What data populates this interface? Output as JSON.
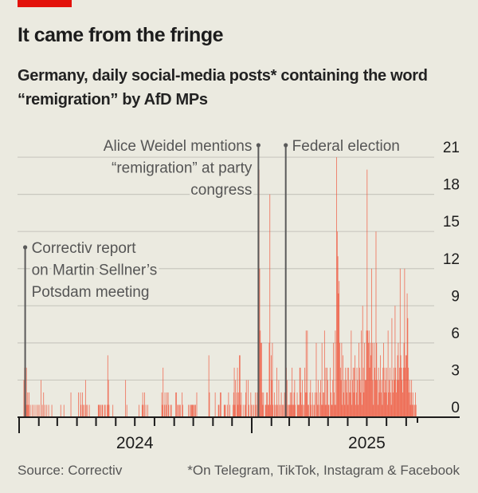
{
  "header": {
    "title": "It came from the fringe",
    "subtitle": "Germany, daily social-media posts* containing the word “remigration” by AfD MPs"
  },
  "footer": {
    "source": "Source: Correctiv",
    "note": "*On Telegram, TikTok, Instagram & Facebook"
  },
  "colors": {
    "brand": "#e3120b",
    "bars": "#f04e33",
    "annotation": "#555555",
    "background": "#ebeae0"
  },
  "chart_data": {
    "type": "bar",
    "title": "It came from the fringe",
    "ylim": [
      0,
      21
    ],
    "yticks": [
      0,
      3,
      6,
      9,
      12,
      15,
      18,
      21
    ],
    "ytick_labels": [
      "0",
      "3",
      "6",
      "9",
      "12",
      "15",
      "18",
      "21"
    ],
    "xtick_labels": [
      "2024",
      "2025"
    ],
    "grid": true,
    "values_by_month": {
      "2024-01": [
        0,
        0,
        0,
        0,
        0,
        0,
        0,
        3,
        4,
        6,
        1,
        4,
        1,
        2,
        1,
        2,
        0,
        1,
        0,
        0,
        1,
        0,
        0,
        1,
        0,
        0,
        1,
        0,
        0,
        1,
        0
      ],
      "2024-02": [
        1,
        0,
        0,
        3,
        0,
        1,
        0,
        2,
        0,
        1,
        0,
        0,
        1,
        0,
        0,
        1,
        0,
        0,
        0,
        0,
        1,
        0,
        0,
        0,
        0,
        0,
        0,
        0,
        0
      ],
      "2024-03": [
        0,
        0,
        0,
        0,
        0,
        1,
        0,
        0,
        0,
        0,
        1,
        0,
        0,
        0,
        0,
        0,
        0,
        0,
        0,
        0,
        0,
        2,
        0,
        0,
        0,
        0,
        0,
        0,
        0,
        0,
        0
      ],
      "2024-04": [
        0,
        0,
        2,
        0,
        0,
        2,
        1,
        0,
        2,
        1,
        0,
        1,
        0,
        3,
        1,
        0,
        1,
        0,
        0,
        1,
        0,
        0,
        0,
        0,
        0,
        0,
        0,
        0,
        0,
        0
      ],
      "2024-05": [
        0,
        0,
        0,
        1,
        1,
        1,
        0,
        1,
        0,
        1,
        1,
        0,
        0,
        1,
        1,
        0,
        0,
        1,
        5,
        3,
        1,
        0,
        0,
        0,
        0,
        0,
        1,
        0,
        0,
        0,
        0
      ],
      "2024-06": [
        0,
        0,
        0,
        0,
        0,
        0,
        0,
        0,
        0,
        0,
        0,
        0,
        0,
        0,
        0,
        3,
        0,
        1,
        0,
        0,
        0,
        0,
        0,
        0,
        0,
        0,
        0,
        0,
        0,
        0
      ],
      "2024-07": [
        0,
        0,
        0,
        0,
        0,
        0,
        1,
        0,
        0,
        0,
        0,
        1,
        2,
        1,
        0,
        2,
        0,
        1,
        0,
        0,
        1,
        0,
        0,
        0,
        0,
        0,
        0,
        0,
        0,
        0,
        0
      ],
      "2024-08": [
        0,
        0,
        0,
        0,
        0,
        0,
        0,
        0,
        0,
        0,
        0,
        2,
        1,
        4,
        0,
        1,
        2,
        0,
        1,
        2,
        0,
        2,
        1,
        0,
        0,
        1,
        1,
        0,
        0,
        0,
        0
      ],
      "2024-09": [
        0,
        0,
        2,
        2,
        0,
        1,
        1,
        0,
        1,
        1,
        0,
        0,
        2,
        1,
        0,
        0,
        0,
        0,
        0,
        0,
        0,
        0,
        1,
        0,
        1,
        0,
        1,
        1,
        1,
        1
      ],
      "2024-10": [
        1,
        0,
        1,
        1,
        0,
        2,
        0,
        0,
        0,
        0,
        0,
        0,
        0,
        0,
        0,
        0,
        0,
        0,
        0,
        0,
        0,
        0,
        0,
        0,
        5,
        2,
        0,
        0,
        0,
        0,
        0
      ],
      "2024-11": [
        0,
        0,
        0,
        2,
        0,
        0,
        0,
        0,
        1,
        1,
        0,
        2,
        2,
        0,
        0,
        0,
        0,
        1,
        1,
        1,
        0,
        0,
        1,
        0,
        2,
        0,
        1,
        0,
        0,
        0
      ],
      "2024-12": [
        0,
        1,
        2,
        4,
        1,
        3,
        0,
        2,
        4,
        1,
        2,
        5,
        5,
        1,
        2,
        0,
        0,
        1,
        0,
        0,
        1,
        2,
        3,
        0,
        0,
        3,
        1,
        0,
        0,
        2,
        1
      ],
      "2025-01": [
        0,
        1,
        0,
        1,
        0,
        2,
        1,
        0,
        2,
        1,
        3,
        20,
        12,
        7,
        6,
        6,
        2,
        1,
        2,
        0,
        0,
        1,
        1,
        2,
        2,
        1,
        1,
        6,
        18,
        1,
        5
      ],
      "2025-02": [
        3,
        6,
        1,
        0,
        2,
        1,
        0,
        1,
        4,
        1,
        0,
        3,
        1,
        0,
        1,
        2,
        0,
        1,
        1,
        0,
        2,
        1,
        1,
        4,
        3,
        1,
        0,
        1
      ],
      "2025-03": [
        1,
        2,
        1,
        2,
        4,
        1,
        1,
        2,
        3,
        1,
        0,
        0,
        2,
        1,
        1,
        1,
        4,
        4,
        2,
        1,
        3,
        1,
        0,
        1,
        4,
        2,
        7,
        2,
        7,
        1,
        1
      ],
      "2025-04": [
        0,
        2,
        3,
        1,
        0,
        2,
        1,
        0,
        1,
        2,
        0,
        6,
        2,
        1,
        3,
        1,
        0,
        2,
        3,
        1,
        6,
        1,
        2,
        2,
        7,
        1,
        4,
        1,
        4,
        3
      ],
      "2025-05": [
        1,
        1,
        0,
        4,
        2,
        1,
        1,
        3,
        6,
        2,
        1,
        7,
        1,
        21,
        15,
        13,
        10,
        11,
        6,
        4,
        3,
        6,
        1,
        5,
        2,
        3,
        1,
        4,
        3,
        2,
        4
      ],
      "2025-06": [
        1,
        4,
        2,
        3,
        2,
        7,
        1,
        3,
        4,
        2,
        4,
        5,
        1,
        2,
        4,
        3,
        1,
        6,
        4,
        3,
        2,
        7,
        1,
        9,
        4,
        2,
        6,
        3,
        3,
        7
      ],
      "2025-07": [
        20,
        7,
        6,
        7,
        4,
        6,
        5,
        12,
        6,
        3,
        1,
        6,
        4,
        3,
        15,
        6,
        3,
        1,
        4,
        2,
        3,
        5,
        2,
        3,
        1,
        4,
        6,
        2,
        4,
        3,
        2
      ],
      "2025-08": [
        4,
        1,
        7,
        2,
        3,
        4,
        2,
        1,
        8,
        3,
        2,
        4,
        3,
        9,
        4,
        2,
        3,
        5,
        6,
        3,
        4,
        12,
        5,
        4,
        3,
        2,
        4,
        6,
        12,
        4,
        5
      ],
      "2025-09": [
        5,
        10,
        8,
        4,
        2,
        3,
        1,
        2,
        3,
        1,
        2,
        1,
        0,
        1,
        2,
        1
      ]
    },
    "annotations": [
      {
        "date": "2024-01-10",
        "lines": [
          "Correctiv report",
          "on Martin Sellner’s",
          "Potsdam meeting"
        ]
      },
      {
        "date": "2025-01-11",
        "lines": [
          "Alice Weidel mentions",
          "“remigration” at party",
          "congress"
        ]
      },
      {
        "date": "2025-02-23",
        "lines": [
          "Federal election"
        ]
      }
    ]
  }
}
